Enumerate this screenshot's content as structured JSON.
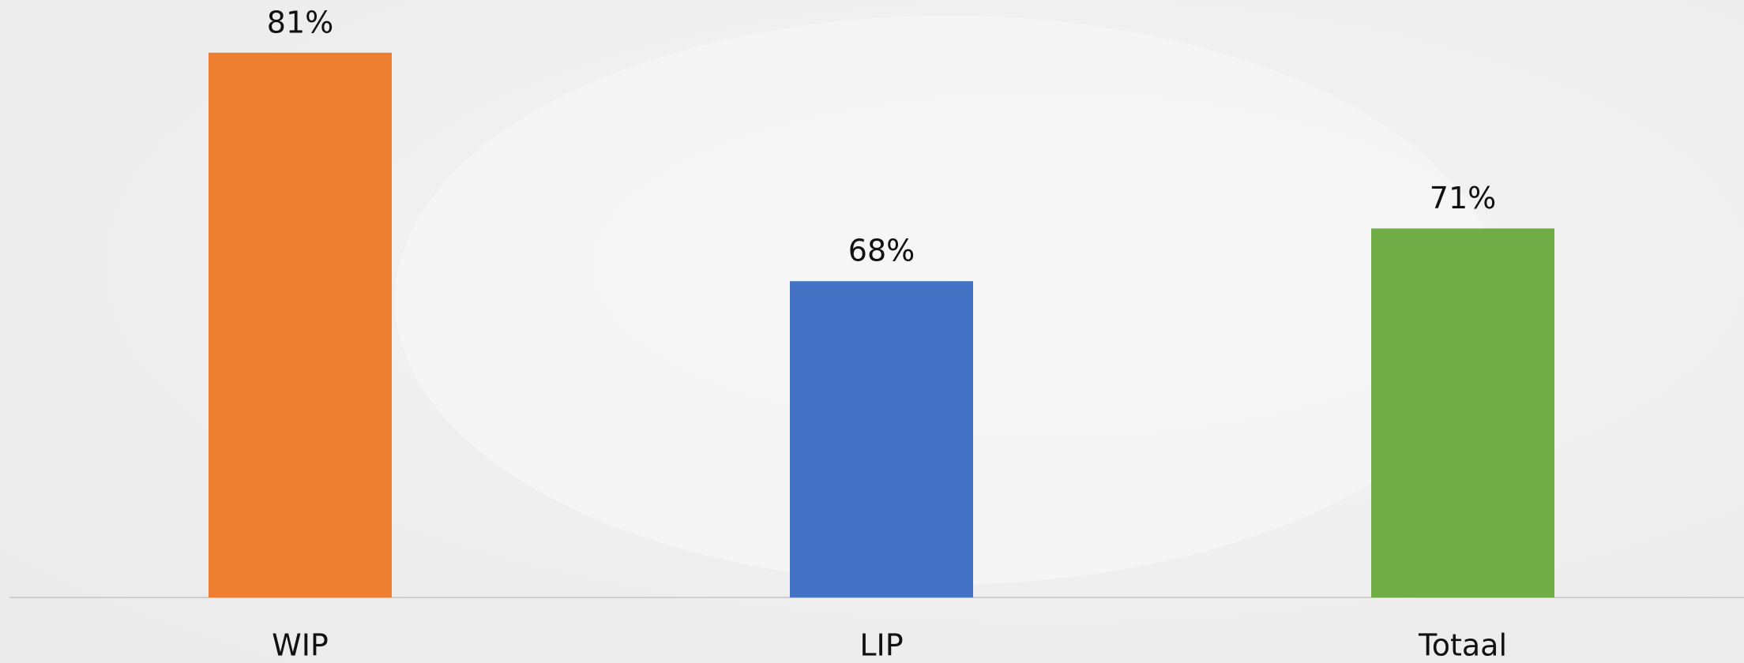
{
  "chart_data": {
    "type": "bar",
    "categories": [
      "WIP",
      "LIP",
      "Totaal"
    ],
    "values": [
      81,
      68,
      71
    ],
    "value_labels": [
      "81%",
      "68%",
      "71%"
    ],
    "colors": [
      "#ed7d31",
      "#4472c4",
      "#70ad47"
    ],
    "ylim": [
      50,
      84
    ]
  }
}
